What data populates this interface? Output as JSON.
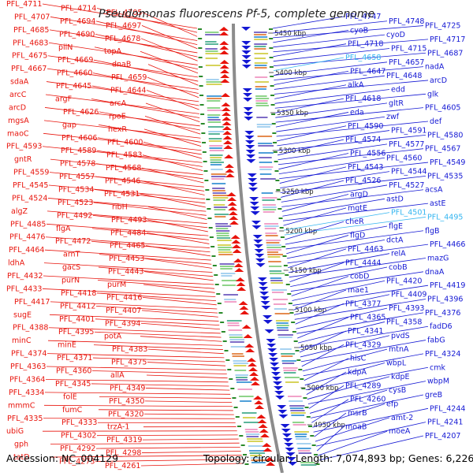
{
  "title": "Pseudomonas fluorescens Pf-5, complete genome",
  "footer": {
    "accession": "Accession: NC_004129",
    "topology": "Topology: circular; Length: 7,074,893 bp; Genes: 6,226"
  },
  "colors": {
    "left_strand": "#e8140c",
    "right_strand": "#1418d4",
    "highlight": "#33b5f0",
    "axis": "#8c8c8c",
    "tick_mark": "#2a8a2a"
  },
  "ticks": [
    "5450 kbp",
    "5400 kbp",
    "5350 kbp",
    "5300 kbp",
    "5250 kbp",
    "5200 kbp",
    "5150 kbp",
    "5100 kbp",
    "5050 kbp",
    "5000 kbp",
    "4950 kbp"
  ],
  "left_labels": [
    "PFL_4711",
    "PFL_4714",
    "PFL_4705",
    "PFL_4707",
    "PFL_4694",
    "PFL_4697",
    "PFL_4685",
    "PFL_4690",
    "PFL_4678",
    "PFL_4683",
    "pilN",
    "topA",
    "PFL_4675",
    "PFL_4669",
    "dnaB",
    "PFL_4667",
    "PFL_4660",
    "PFL_4659",
    "sdaA",
    "PFL_4645",
    "PFL_4644",
    "arcC",
    "argF",
    "arcA",
    "arcD",
    "PFL_4626",
    "rpoE",
    "mgsA",
    "gap",
    "hexR",
    "maoC",
    "PFL_4606",
    "PFL_4600",
    "PFL_4593",
    "PFL_4589",
    "PFL_4583",
    "gntR",
    "PFL_4578",
    "PFL_4568",
    "PFL_4559",
    "PFL_4557",
    "PFL_4546",
    "PFL_4545",
    "PFL_4534",
    "PFL_4531",
    "PFL_4524",
    "PFL_4523",
    "ribH",
    "algZ",
    "PFL_4492",
    "PFL_4493",
    "PFL_4485",
    "flgA",
    "PFL_4484",
    "PFL_4476",
    "PFL_4472",
    "PFL_4465",
    "PFL_4464",
    "arnT",
    "PFL_4453",
    "ldhA",
    "gacS",
    "PFL_4443",
    "PFL_4432",
    "purN",
    "purM",
    "PFL_4433",
    "PFL_4418",
    "PFL_4416",
    "PFL_4417",
    "PFL_4412",
    "PFL_4407",
    "sugE",
    "PFL_4401",
    "PFL_4394",
    "PFL_4388",
    "PFL_4395",
    "potA",
    "minC",
    "minE",
    "PFL_4383",
    "PFL_4374",
    "PFL_4371",
    "PFL_4375",
    "PFL_4363",
    "PFL_4360",
    "allA",
    "PFL_4364",
    "PFL_4345",
    "PFL_4349",
    "PFL_4334",
    "folE",
    "PFL_4350",
    "mmmC",
    "fumC",
    "PFL_4320",
    "PFL_4335",
    "PFL_4333",
    "trzA-1",
    "ubiG",
    "PFL_4302",
    "PFL_4319",
    "gph",
    "PFL_4292",
    "PFL_4298",
    "tatD",
    "PFL_4273",
    "PFL_4261"
  ],
  "right_labels": [
    "PFL_4747",
    "PFL_4748",
    "PFL_4725",
    "cyoB",
    "cyoD",
    "PFL_4717",
    "PFL_4718",
    "PFL_4715",
    "PFL_4687",
    "PFL_4658",
    "PFL_4657",
    "nadA",
    "PFL_4647",
    "PFL_4648",
    "arcD",
    "alkA",
    "edd",
    "glk",
    "PFL_4618",
    "gltR",
    "PFL_4605",
    "eda",
    "zwf",
    "def",
    "PFL_4590",
    "PFL_4591",
    "PFL_4580",
    "PFL_4574",
    "PFL_4577",
    "PFL_4567",
    "PFL_4556",
    "PFL_4560",
    "PFL_4549",
    "PFL_4543",
    "PFL_4544",
    "PFL_4535",
    "PFL_4526",
    "PFL_4527",
    "acsA",
    "argD",
    "astD",
    "astE",
    "mgtE",
    "PFL_4501",
    "PFL_4495",
    "cheR",
    "flgE",
    "flgB",
    "flgD",
    "dctA",
    "PFL_4466",
    "PFL_4463",
    "relA",
    "mazG",
    "PFL_4444",
    "cobB",
    "dnaA",
    "cobD",
    "PFL_4420",
    "PFL_4419",
    "mae1",
    "PFL_4409",
    "PFL_4396",
    "PFL_4377",
    "PFL_4393",
    "PFL_4376",
    "PFL_4365",
    "PFL_4358",
    "fadD6",
    "PFL_4341",
    "pvdS",
    "fabG",
    "PFL_4329",
    "mtnA",
    "PFL_4324",
    "hisC",
    "wbpL",
    "cmk",
    "kdpA",
    "kdpE",
    "wbpM",
    "PFL_4289",
    "cysB",
    "greB",
    "PFL_4260",
    "efp",
    "PFL_4244",
    "msrB",
    "amt-2",
    "PFL_4241",
    "moaB",
    "moeA",
    "PFL_4207"
  ]
}
